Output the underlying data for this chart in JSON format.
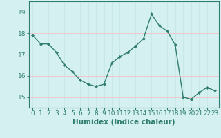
{
  "x": [
    0,
    1,
    2,
    3,
    4,
    5,
    6,
    7,
    8,
    9,
    10,
    11,
    12,
    13,
    14,
    15,
    16,
    17,
    18,
    19,
    20,
    21,
    22,
    23
  ],
  "y": [
    17.9,
    17.5,
    17.5,
    17.1,
    16.5,
    16.2,
    15.8,
    15.6,
    15.5,
    15.6,
    16.6,
    16.9,
    17.1,
    17.4,
    17.75,
    18.9,
    18.35,
    18.1,
    17.45,
    15.0,
    14.9,
    15.2,
    15.45,
    15.3
  ],
  "line_color": "#2e7d6e",
  "marker": "D",
  "marker_size": 2.5,
  "bg_color": "#d5f0f0",
  "grid_color_v": "#c8e8e8",
  "grid_color_h": "#f0c8c8",
  "xlabel": "Humidex (Indice chaleur)",
  "ylabel": "",
  "xlim": [
    -0.5,
    23.5
  ],
  "ylim": [
    14.5,
    19.5
  ],
  "yticks": [
    15,
    16,
    17,
    18,
    19
  ],
  "xticks": [
    0,
    1,
    2,
    3,
    4,
    5,
    6,
    7,
    8,
    9,
    10,
    11,
    12,
    13,
    14,
    15,
    16,
    17,
    18,
    19,
    20,
    21,
    22,
    23
  ],
  "xlabel_fontsize": 7.5,
  "tick_fontsize": 6.5
}
